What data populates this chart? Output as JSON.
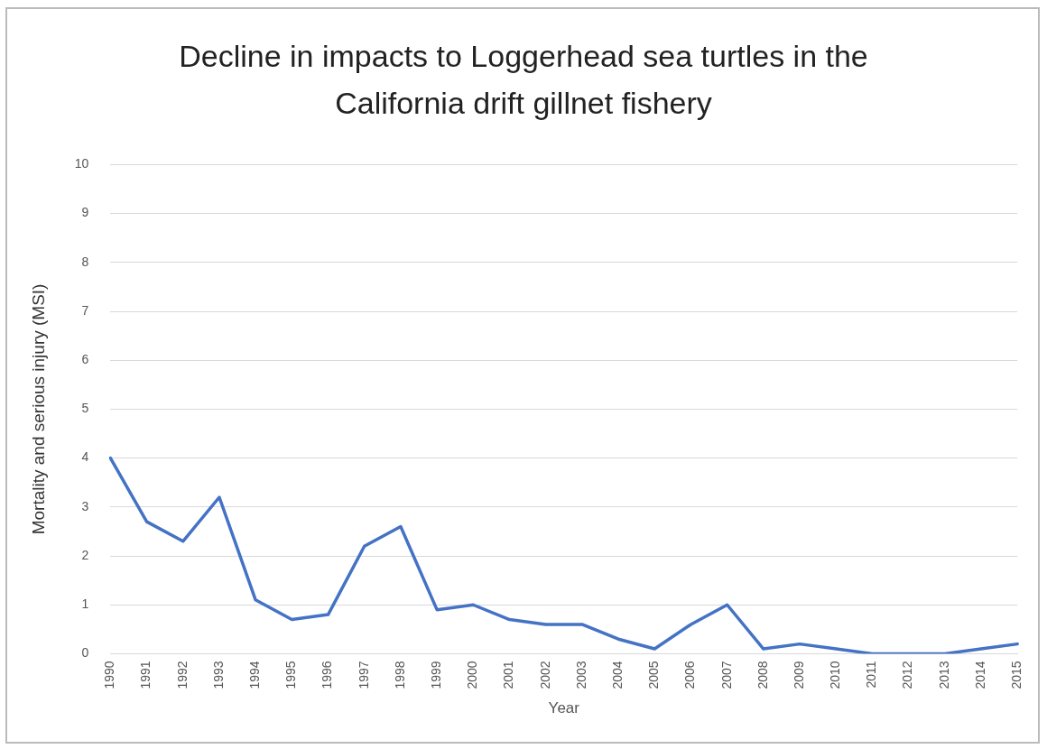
{
  "chart_data": {
    "type": "line",
    "title": "Decline in impacts to Loggerhead sea turtles in the California drift gillnet fishery",
    "xlabel": "Year",
    "ylabel": "Mortality and serious injury (MSI)",
    "categories": [
      "1990",
      "1991",
      "1992",
      "1993",
      "1994",
      "1995",
      "1996",
      "1997",
      "1998",
      "1999",
      "2000",
      "2001",
      "2002",
      "2003",
      "2004",
      "2005",
      "2006",
      "2007",
      "2008",
      "2009",
      "2010",
      "2011",
      "2012",
      "2013",
      "2014",
      "2015"
    ],
    "series": [
      {
        "color": "#4472c4",
        "values": [
          4.0,
          2.7,
          2.3,
          3.2,
          1.1,
          0.7,
          0.8,
          2.2,
          2.6,
          0.9,
          1.0,
          0.7,
          0.6,
          0.6,
          0.3,
          0.1,
          0.6,
          1.0,
          0.1,
          0.2,
          0.1,
          0,
          0,
          0,
          0.1,
          0.2
        ]
      }
    ],
    "ylim": [
      0,
      10
    ],
    "yticks": [
      0,
      1,
      2,
      3,
      4,
      5,
      6,
      7,
      8,
      9,
      10
    ],
    "grid": "y",
    "legend": false,
    "marker": "none",
    "line_style": "solid"
  }
}
